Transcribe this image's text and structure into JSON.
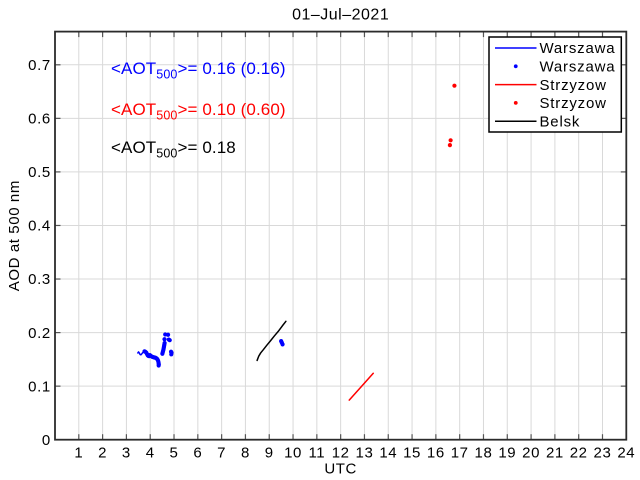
{
  "chart_data": {
    "type": "line",
    "title": "01–Jul–2021",
    "xlabel": "UTC",
    "ylabel": "AOD at 500 nm",
    "xlim": [
      0,
      24
    ],
    "ylim": [
      0,
      0.762
    ],
    "x_ticks": [
      1,
      2,
      3,
      4,
      5,
      6,
      7,
      8,
      9,
      10,
      11,
      12,
      13,
      14,
      15,
      16,
      17,
      18,
      19,
      20,
      21,
      22,
      23,
      24
    ],
    "y_ticks": [
      0,
      0.1,
      0.2,
      0.3,
      0.4,
      0.5,
      0.6,
      0.7
    ],
    "grid": true,
    "colors": {
      "warszawa": "#0000ff",
      "strzyzow": "#ff0000",
      "belsk": "#000000",
      "grid_line": "#d9d9d9",
      "axis_box": "#2b2b2b",
      "tick_mark": "#555555",
      "background": "#ffffff"
    },
    "series": [
      {
        "name": "Warszawa",
        "style": "line",
        "color": "#0000ff",
        "points": [
          [
            3.48,
            0.162
          ],
          [
            3.51,
            0.164
          ],
          [
            3.545,
            0.1615
          ],
          [
            3.575,
            0.159
          ],
          [
            3.61,
            0.1585
          ],
          [
            3.65,
            0.1605
          ],
          [
            3.69,
            0.163
          ],
          [
            3.73,
            0.1645
          ]
        ]
      },
      {
        "name": "Warszawa",
        "style": "scatter",
        "color": "#0000ff",
        "points": [
          [
            3.76,
            0.165
          ],
          [
            3.8,
            0.164
          ],
          [
            3.835,
            0.1625
          ],
          [
            3.865,
            0.16
          ],
          [
            3.89,
            0.158
          ],
          [
            3.92,
            0.1565
          ],
          [
            3.955,
            0.156
          ],
          [
            3.985,
            0.158
          ],
          [
            4.02,
            0.1565
          ],
          [
            4.06,
            0.1555
          ],
          [
            4.1,
            0.1545
          ],
          [
            4.14,
            0.154
          ],
          [
            4.18,
            0.1535
          ],
          [
            4.22,
            0.153
          ],
          [
            4.26,
            0.152
          ],
          [
            4.295,
            0.1505
          ],
          [
            4.32,
            0.1485
          ],
          [
            4.34,
            0.146
          ],
          [
            4.35,
            0.1435
          ],
          [
            4.36,
            0.141
          ],
          [
            4.355,
            0.1385
          ],
          [
            4.51,
            0.1605
          ],
          [
            4.525,
            0.163
          ],
          [
            4.54,
            0.1655
          ],
          [
            4.555,
            0.168
          ],
          [
            4.565,
            0.1705
          ],
          [
            4.575,
            0.173
          ],
          [
            4.585,
            0.1755
          ],
          [
            4.595,
            0.178
          ],
          [
            4.605,
            0.1805
          ],
          [
            4.6,
            0.1875
          ],
          [
            4.63,
            0.1965
          ],
          [
            4.75,
            0.196
          ],
          [
            4.78,
            0.187
          ],
          [
            4.82,
            0.1858
          ],
          [
            4.875,
            0.1642
          ],
          [
            4.895,
            0.1623
          ],
          [
            4.885,
            0.1594
          ],
          [
            9.5,
            0.184
          ],
          [
            9.53,
            0.181
          ],
          [
            9.56,
            0.178
          ]
        ]
      },
      {
        "name": "Strzyzow",
        "style": "line",
        "color": "#ff0000",
        "points": [
          [
            12.36,
            0.074
          ],
          [
            13.37,
            0.124
          ]
        ]
      },
      {
        "name": "Strzyzow",
        "style": "scatter",
        "color": "#ff0000",
        "points": [
          [
            16.78,
            0.661
          ],
          [
            16.59,
            0.55
          ],
          [
            16.62,
            0.559
          ]
        ]
      },
      {
        "name": "Belsk",
        "style": "line",
        "color": "#000000",
        "points": [
          [
            8.49,
            0.148
          ],
          [
            8.56,
            0.156
          ],
          [
            8.64,
            0.162
          ],
          [
            8.76,
            0.1685
          ],
          [
            8.9,
            0.1765
          ],
          [
            9.05,
            0.1845
          ],
          [
            9.22,
            0.194
          ],
          [
            9.4,
            0.2035
          ],
          [
            9.55,
            0.2125
          ],
          [
            9.7,
            0.221
          ]
        ]
      }
    ],
    "legend": {
      "position": "top-right",
      "items": [
        {
          "label": "Warszawa",
          "marker": "line",
          "color": "#0000ff"
        },
        {
          "label": "Warszawa",
          "marker": "dot",
          "color": "#0000ff"
        },
        {
          "label": "Strzyzow",
          "marker": "line",
          "color": "#ff0000"
        },
        {
          "label": "Strzyzow",
          "marker": "dot",
          "color": "#ff0000"
        },
        {
          "label": "Belsk",
          "marker": "line",
          "color": "#000000"
        }
      ]
    },
    "annotations": [
      {
        "prefix": "<AOT",
        "sub": "500",
        "suffix": ">= 0.16 (0.16)",
        "color": "#0000ff"
      },
      {
        "prefix": "<AOT",
        "sub": "500",
        "suffix": ">= 0.10 (0.60)",
        "color": "#ff0000"
      },
      {
        "prefix": "<AOT",
        "sub": "500",
        "suffix": ">= 0.18",
        "color": "#000000"
      }
    ]
  }
}
